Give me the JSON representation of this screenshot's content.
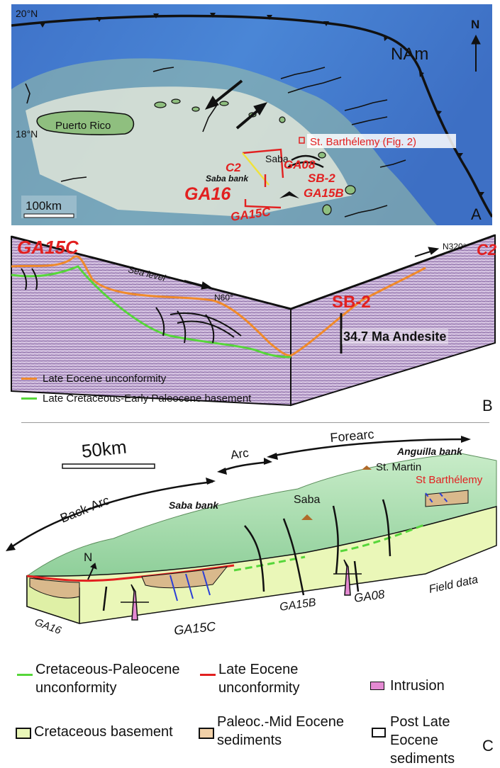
{
  "panel_a": {
    "lat_top": "20°N",
    "lat_mid": "18°N",
    "plate": "NAm",
    "north": "N",
    "puerto_rico": "Puerto Rico",
    "saba": "Saba",
    "saba_bank": "Saba bank",
    "st_barth": "St. Barthélemy (Fig. 2)",
    "c2": "C2",
    "ga08": "GA08",
    "sb2": "SB-2",
    "ga16": "GA16",
    "ga15b": "GA15B",
    "ga15c": "GA15C",
    "scale": "100km",
    "panel_letter": "A"
  },
  "panel_b": {
    "ga15c": "GA15C",
    "sea_level": "Sea level",
    "az1": "N60°",
    "sb2": "SB-2",
    "az2": "N320°",
    "c2": "C2",
    "andesite": "34.7 Ma Andesite",
    "legend": [
      {
        "label": "Late Eocene unconformity",
        "color": "#f08a2a"
      },
      {
        "label": "Late Cretaceous-Early Paleocene basement",
        "color": "#56d63a"
      }
    ],
    "panel_letter": "B"
  },
  "panel_c": {
    "scale": "50km",
    "arc": "Arc",
    "forearc": "Forearc",
    "back_arc": "Back-Arc",
    "anguilla": "Anguilla bank",
    "st_martin": "St. Martin",
    "st_barth": "St Barthélemy",
    "saba": "Saba",
    "saba_bank": "Saba bank",
    "north": "N",
    "ga16": "GA16",
    "ga15c": "GA15C",
    "ga15b": "GA15B",
    "ga08": "GA08",
    "field": "Field data",
    "panel_letter": "C"
  },
  "legend_c": {
    "green_line": [
      "Cretaceous-Paleocene",
      "unconformity"
    ],
    "red_line": [
      "Late Eocene",
      "unconformity"
    ],
    "intrusion": "Intrusion",
    "basement": "Cretaceous basement",
    "paleoc": [
      "Paleoc.-Mid Eocene",
      "sediments"
    ],
    "post": [
      "Post Late Eocene",
      "sediments"
    ]
  }
}
